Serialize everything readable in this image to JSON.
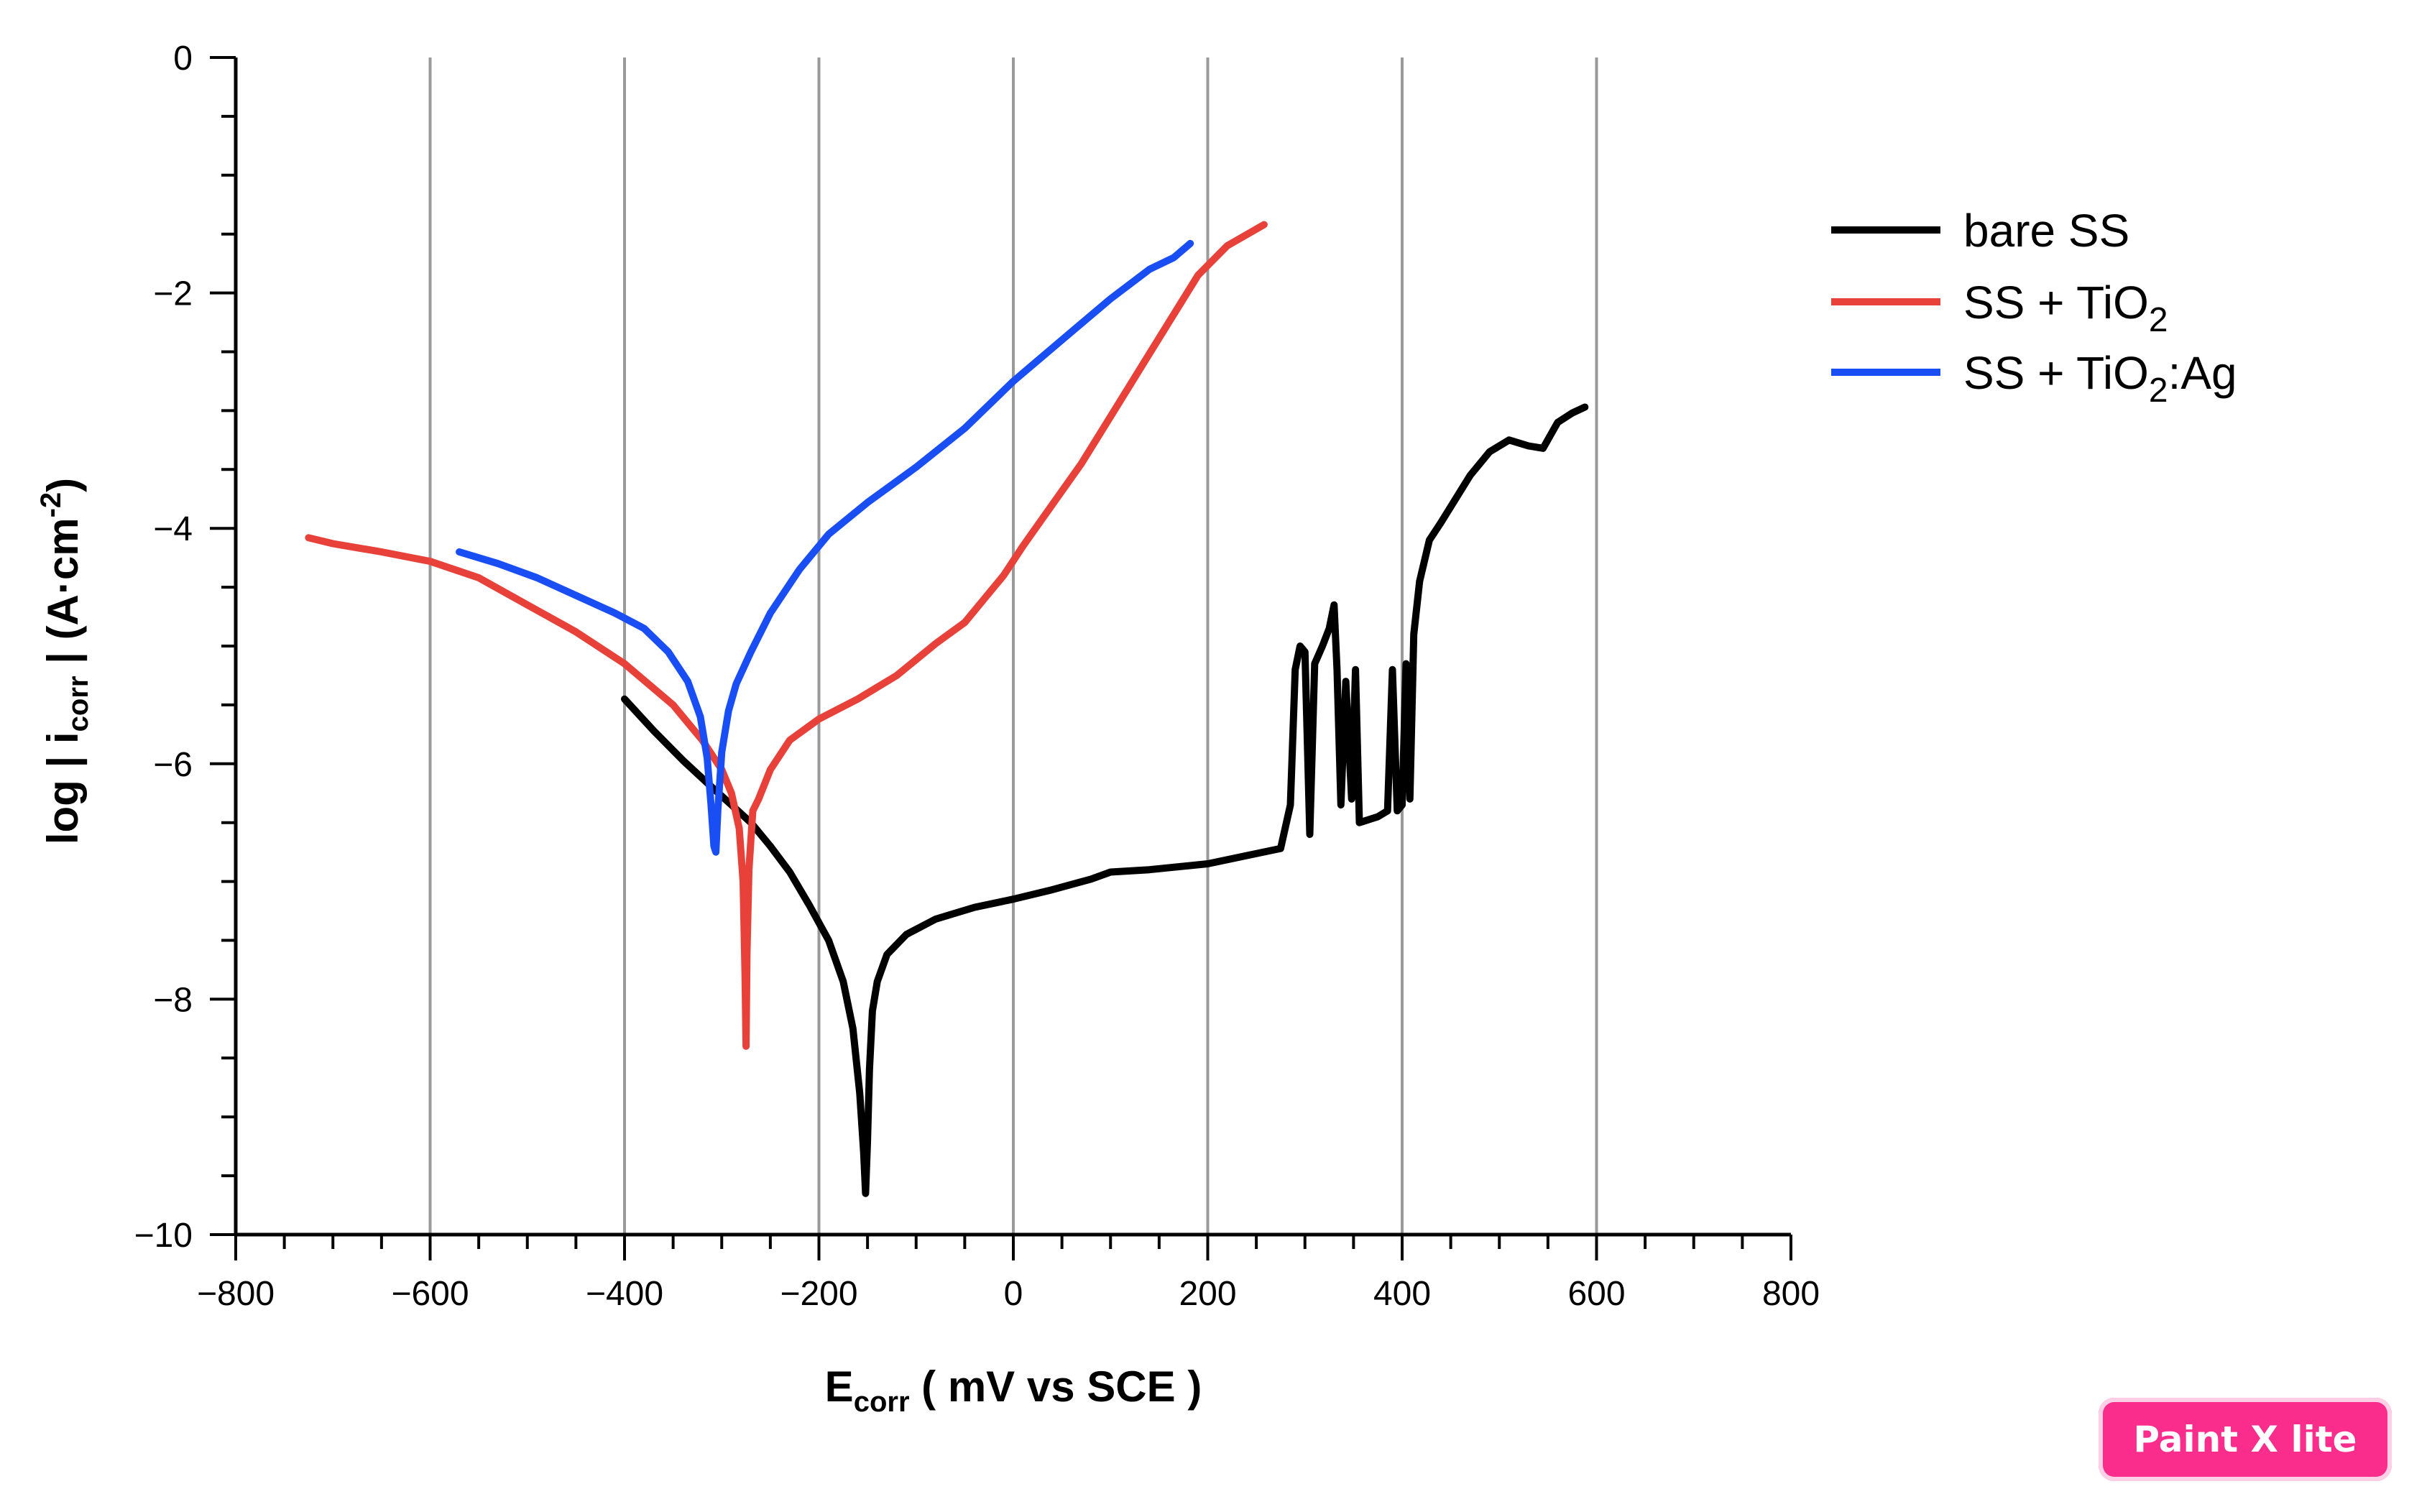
{
  "chart_data": {
    "type": "line",
    "title": "",
    "xlabel": {
      "main": "E",
      "sub": "corr",
      "rest": " ( mV vs SCE )"
    },
    "ylabel": {
      "pre": "log | i",
      "sub": "corr",
      "mid": " | (A·cm",
      "sup": "-2",
      "post": ")"
    },
    "xlim": [
      -800,
      800
    ],
    "ylim": [
      -10,
      0
    ],
    "xticks": [
      -800,
      -600,
      -400,
      -200,
      0,
      200,
      400,
      600,
      800
    ],
    "xtick_labels": [
      "−800",
      "−600",
      "−400",
      "−200",
      "0",
      "200",
      "400",
      "600",
      "800"
    ],
    "yticks": [
      0,
      -2,
      -4,
      -6,
      -8,
      -10
    ],
    "ytick_labels": [
      "0",
      "−2",
      "−4",
      "−6",
      "−8",
      "−10"
    ],
    "vertical_grid": [
      -600,
      -400,
      -200,
      0,
      200,
      400,
      600
    ],
    "legend_position": "top-right",
    "series": [
      {
        "name": "bare SS",
        "legend": {
          "text": "bare SS"
        },
        "color": "#000000",
        "points": [
          [
            -400,
            -5.45
          ],
          [
            -370,
            -5.72
          ],
          [
            -340,
            -5.97
          ],
          [
            -310,
            -6.2
          ],
          [
            -290,
            -6.35
          ],
          [
            -270,
            -6.5
          ],
          [
            -250,
            -6.7
          ],
          [
            -230,
            -6.92
          ],
          [
            -210,
            -7.2
          ],
          [
            -190,
            -7.5
          ],
          [
            -175,
            -7.85
          ],
          [
            -165,
            -8.25
          ],
          [
            -158,
            -8.8
          ],
          [
            -154,
            -9.3
          ],
          [
            -152,
            -9.65
          ],
          [
            -150,
            -9.2
          ],
          [
            -148,
            -8.6
          ],
          [
            -145,
            -8.1
          ],
          [
            -140,
            -7.85
          ],
          [
            -130,
            -7.62
          ],
          [
            -110,
            -7.45
          ],
          [
            -80,
            -7.32
          ],
          [
            -40,
            -7.22
          ],
          [
            0,
            -7.15
          ],
          [
            40,
            -7.07
          ],
          [
            80,
            -6.98
          ],
          [
            100,
            -6.92
          ],
          [
            140,
            -6.9
          ],
          [
            200,
            -6.85
          ],
          [
            240,
            -6.78
          ],
          [
            275,
            -6.72
          ],
          [
            285,
            -6.35
          ],
          [
            290,
            -5.2
          ],
          [
            295,
            -5.0
          ],
          [
            300,
            -5.05
          ],
          [
            305,
            -6.6
          ],
          [
            310,
            -5.15
          ],
          [
            318,
            -5.0
          ],
          [
            325,
            -4.85
          ],
          [
            330,
            -4.65
          ],
          [
            333,
            -5.2
          ],
          [
            337,
            -6.35
          ],
          [
            342,
            -5.3
          ],
          [
            348,
            -6.3
          ],
          [
            352,
            -5.2
          ],
          [
            356,
            -6.5
          ],
          [
            375,
            -6.45
          ],
          [
            385,
            -6.4
          ],
          [
            390,
            -5.2
          ],
          [
            395,
            -6.4
          ],
          [
            400,
            -6.35
          ],
          [
            404,
            -5.15
          ],
          [
            408,
            -6.3
          ],
          [
            412,
            -4.9
          ],
          [
            418,
            -4.45
          ],
          [
            428,
            -4.1
          ],
          [
            440,
            -3.95
          ],
          [
            455,
            -3.75
          ],
          [
            470,
            -3.55
          ],
          [
            490,
            -3.35
          ],
          [
            510,
            -3.25
          ],
          [
            530,
            -3.3
          ],
          [
            545,
            -3.32
          ],
          [
            560,
            -3.1
          ],
          [
            575,
            -3.02
          ],
          [
            588,
            -2.97
          ]
        ]
      },
      {
        "name": "SS + TiO2",
        "legend": {
          "text": "SS + TiO",
          "sub": "2",
          "post": ""
        },
        "color": "#e8413a",
        "points": [
          [
            -725,
            -4.08
          ],
          [
            -700,
            -4.13
          ],
          [
            -650,
            -4.2
          ],
          [
            -600,
            -4.28
          ],
          [
            -550,
            -4.42
          ],
          [
            -500,
            -4.65
          ],
          [
            -450,
            -4.88
          ],
          [
            -400,
            -5.15
          ],
          [
            -350,
            -5.5
          ],
          [
            -320,
            -5.8
          ],
          [
            -300,
            -6.05
          ],
          [
            -290,
            -6.25
          ],
          [
            -282,
            -6.55
          ],
          [
            -278,
            -7.0
          ],
          [
            -276,
            -7.8
          ],
          [
            -275,
            -8.4
          ],
          [
            -274,
            -7.6
          ],
          [
            -272,
            -6.9
          ],
          [
            -268,
            -6.4
          ],
          [
            -262,
            -6.3
          ],
          [
            -250,
            -6.05
          ],
          [
            -230,
            -5.8
          ],
          [
            -200,
            -5.62
          ],
          [
            -160,
            -5.45
          ],
          [
            -120,
            -5.25
          ],
          [
            -80,
            -4.98
          ],
          [
            -50,
            -4.8
          ],
          [
            -30,
            -4.6
          ],
          [
            -10,
            -4.4
          ],
          [
            10,
            -4.15
          ],
          [
            40,
            -3.8
          ],
          [
            70,
            -3.45
          ],
          [
            100,
            -3.05
          ],
          [
            130,
            -2.65
          ],
          [
            160,
            -2.25
          ],
          [
            190,
            -1.85
          ],
          [
            220,
            -1.6
          ],
          [
            258,
            -1.42
          ]
        ]
      },
      {
        "name": "SS + TiO2:Ag",
        "legend": {
          "text": "SS + TiO",
          "sub": "2",
          "post": ":Ag"
        },
        "color": "#1a4ef5",
        "points": [
          [
            -570,
            -4.2
          ],
          [
            -530,
            -4.3
          ],
          [
            -490,
            -4.42
          ],
          [
            -450,
            -4.57
          ],
          [
            -410,
            -4.72
          ],
          [
            -380,
            -4.85
          ],
          [
            -355,
            -5.05
          ],
          [
            -335,
            -5.3
          ],
          [
            -322,
            -5.6
          ],
          [
            -315,
            -5.95
          ],
          [
            -311,
            -6.35
          ],
          [
            -308,
            -6.7
          ],
          [
            -306,
            -6.75
          ],
          [
            -304,
            -6.4
          ],
          [
            -300,
            -5.9
          ],
          [
            -293,
            -5.55
          ],
          [
            -285,
            -5.32
          ],
          [
            -270,
            -5.05
          ],
          [
            -250,
            -4.72
          ],
          [
            -220,
            -4.35
          ],
          [
            -190,
            -4.05
          ],
          [
            -150,
            -3.78
          ],
          [
            -100,
            -3.48
          ],
          [
            -50,
            -3.15
          ],
          [
            0,
            -2.75
          ],
          [
            50,
            -2.4
          ],
          [
            100,
            -2.05
          ],
          [
            140,
            -1.8
          ],
          [
            165,
            -1.7
          ],
          [
            182,
            -1.58
          ]
        ]
      }
    ]
  },
  "badge": {
    "label": "Paint X lite"
  }
}
